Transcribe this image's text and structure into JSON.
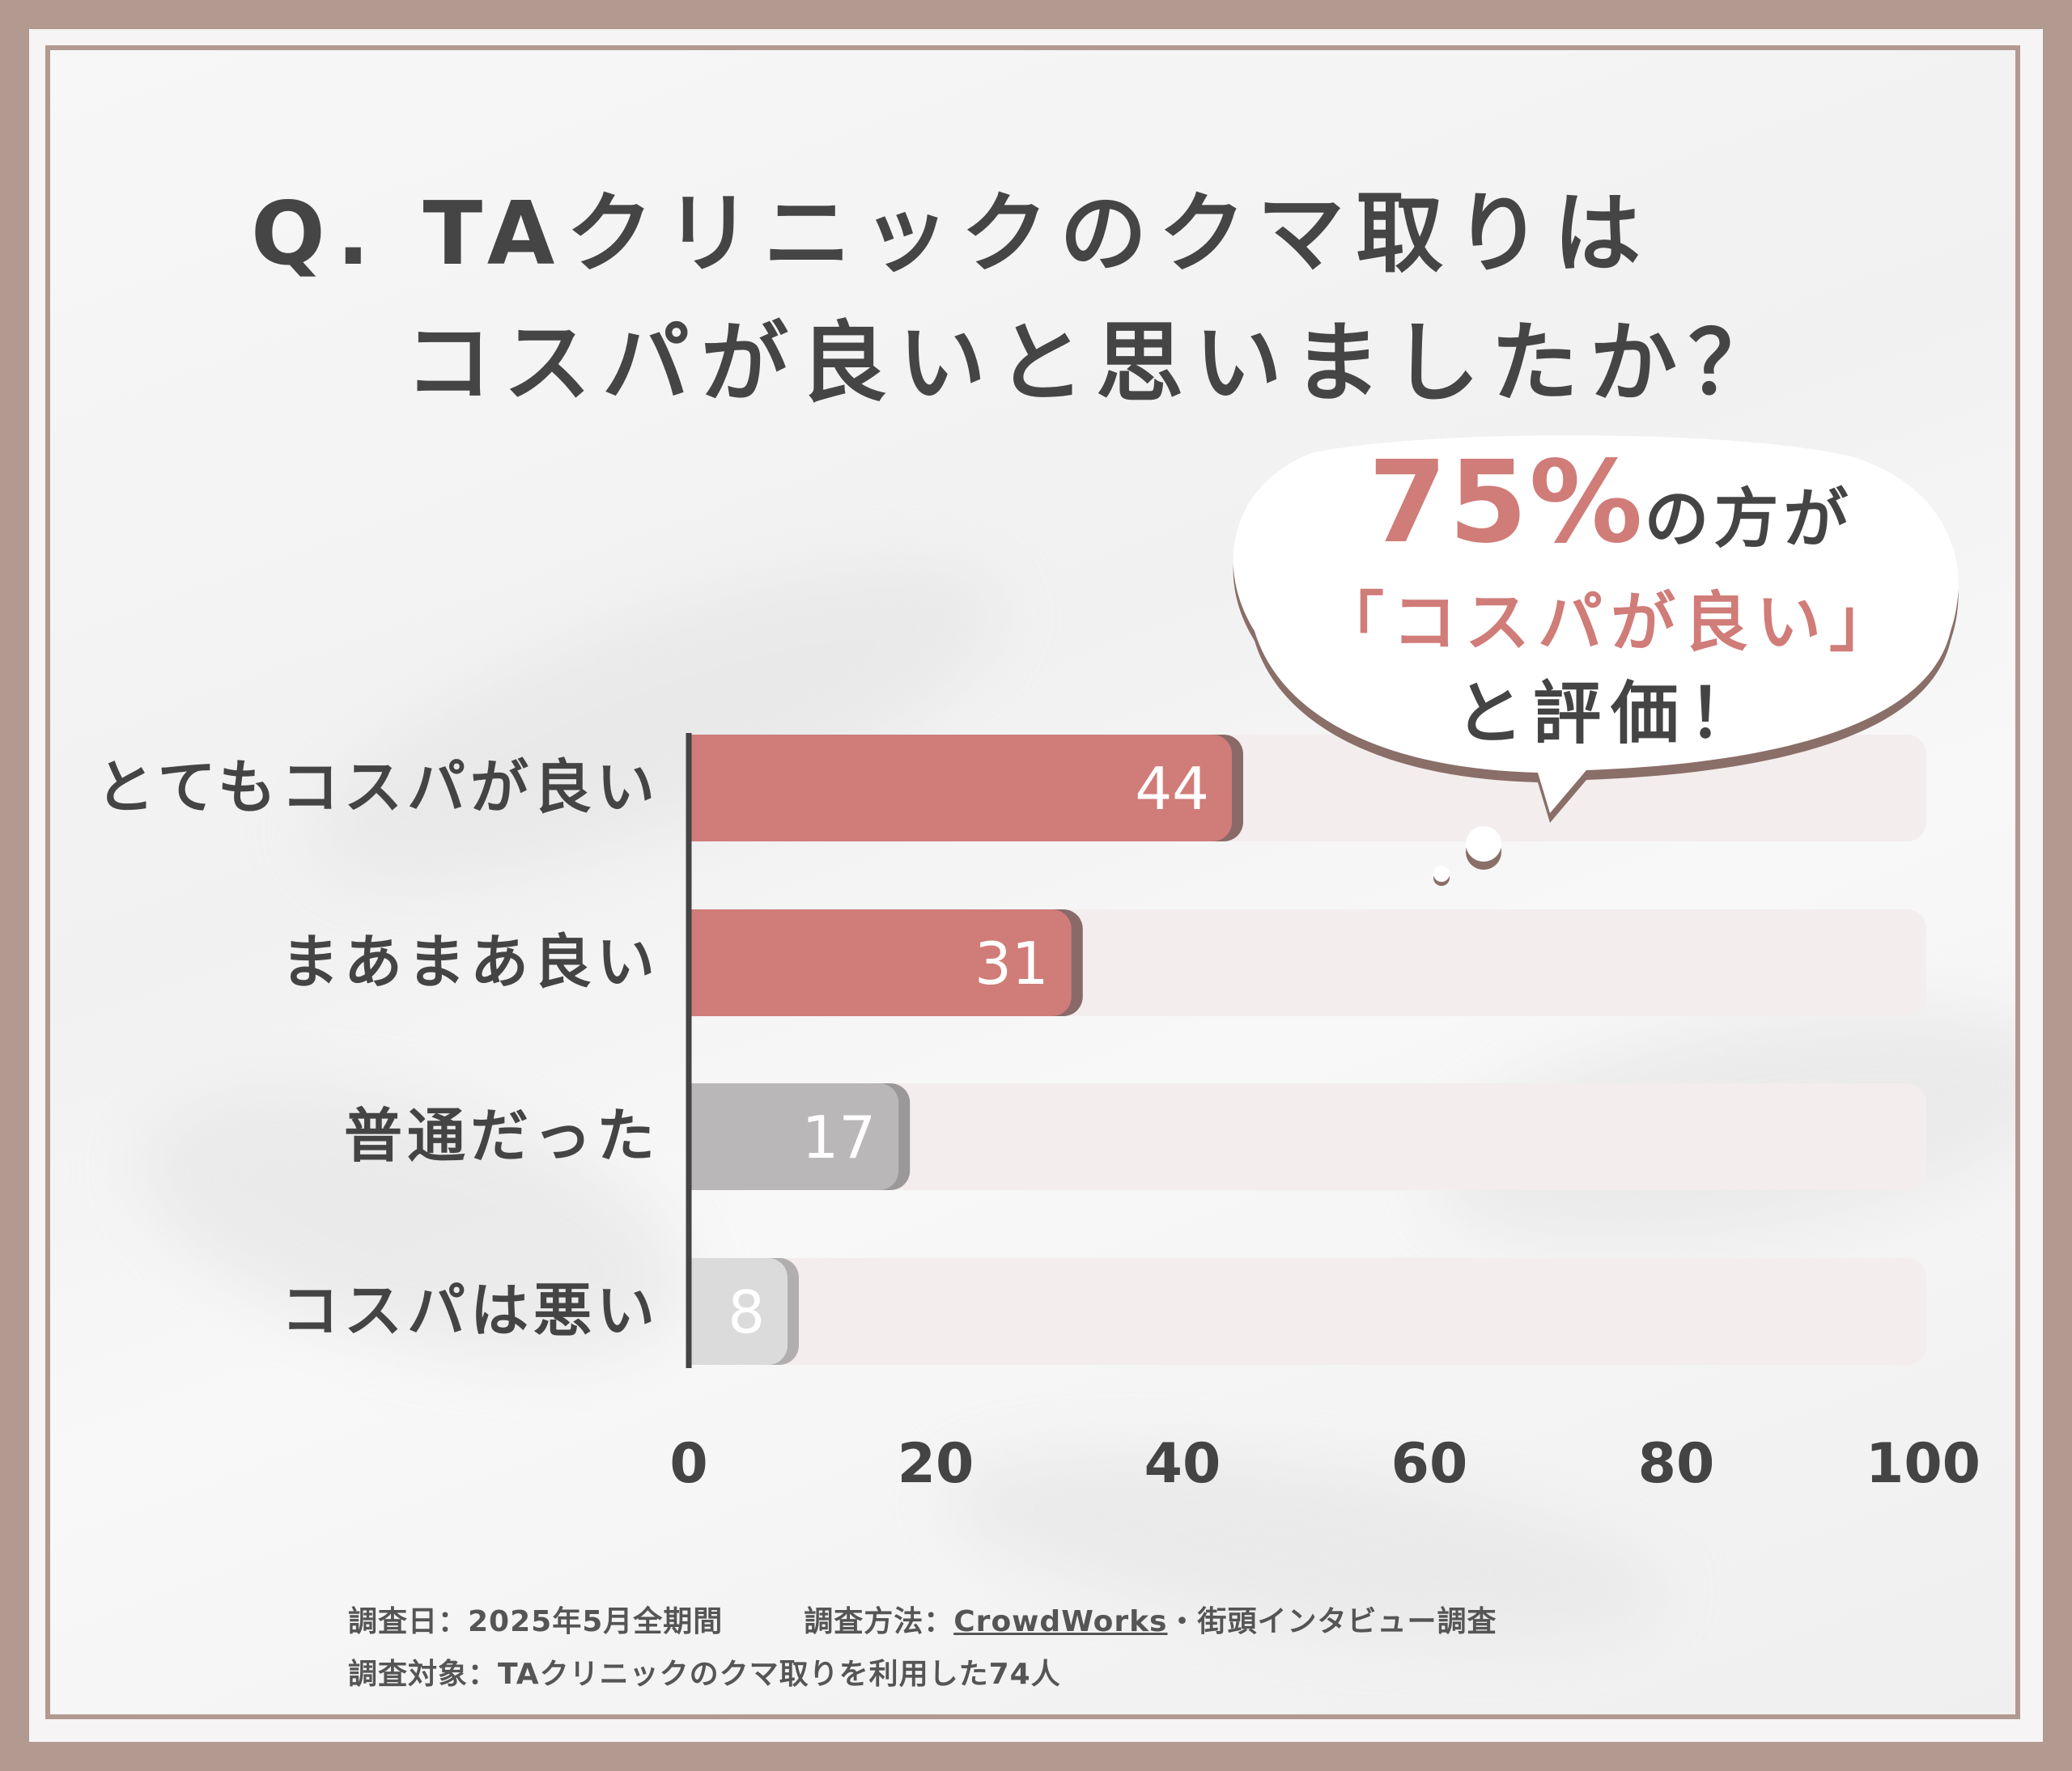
{
  "title": {
    "line1": "Q. TAクリニックのクマ取りは",
    "line2": "コスパが良いと思いましたか？"
  },
  "callout": {
    "percent": "75%",
    "line1_suffix": "の方が",
    "line2": "「コスパが良い」",
    "line3": "と評価！"
  },
  "chart_data": {
    "type": "bar",
    "orientation": "horizontal",
    "categories": [
      "とてもコスパが良い",
      "まあまあ良い",
      "普通だった",
      "コスパは悪い"
    ],
    "values": [
      44,
      31,
      17,
      8
    ],
    "data_labels": [
      "44",
      "31",
      "17",
      "8"
    ],
    "xlim": [
      0,
      100
    ],
    "x_ticks": [
      "0",
      "20",
      "40",
      "60",
      "80",
      "100"
    ],
    "grid": false,
    "colors": {
      "highlight": "#d07c78",
      "highlight_shadow": "#8a6a68",
      "neutral": "#b9b7b7",
      "neutral_shadow": "#9a9898",
      "light": "#dcdbdb",
      "light_shadow": "#b0aeae",
      "track": "#f3eded",
      "axis": "#444444"
    },
    "bar_colors": [
      "highlight",
      "highlight",
      "neutral",
      "light"
    ]
  },
  "footer": {
    "date": "調査日：2025年5月全期間",
    "method_label": "調査方法：",
    "method_link": "CrowdWorks",
    "method_rest": "・街頭インタビュー調査",
    "subject": "調査対象：TAクリニックのクマ取りを利用した74人"
  }
}
